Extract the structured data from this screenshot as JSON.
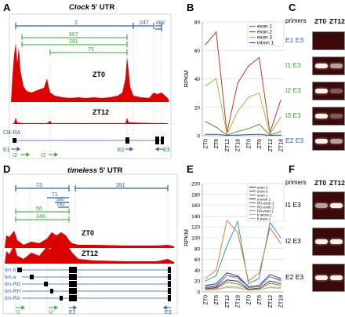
{
  "panels": {
    "A": {
      "label": "A",
      "title_gene": "Clock",
      "title_rest": " 5' UTR"
    },
    "B": {
      "label": "B"
    },
    "C": {
      "label": "C"
    },
    "D": {
      "label": "D",
      "title_gene": "timeless",
      "title_rest": "  5' UTR"
    },
    "E": {
      "label": "E"
    },
    "F": {
      "label": "F"
    }
  },
  "clock_track": {
    "blue_labels": [
      "1",
      "247",
      "889"
    ],
    "green_labels": [
      "667",
      "291",
      "75"
    ],
    "tracks": [
      "ZT0",
      "ZT12"
    ],
    "transcript": "Clk-RA",
    "primers_bottom": [
      "E1",
      "I2",
      "I3",
      "E2",
      "E3"
    ],
    "colors": {
      "coverage": "#dd0000",
      "blue": "#2e5fa8",
      "green": "#33aa33"
    }
  },
  "tim_track": {
    "blue_labels": [
      "73",
      "71",
      "587",
      "162",
      "391"
    ],
    "green_labels": [
      "66",
      "349"
    ],
    "tracks": [
      "ZT0",
      "ZT12"
    ],
    "transcripts": [
      "tim.b",
      "tim.a",
      "tim-RG",
      "tim-RH",
      "tim-RA"
    ],
    "primers_bottom": [
      "I1",
      "I2",
      "E2",
      "E3"
    ]
  },
  "chart_data": [
    {
      "type": "line",
      "panel": "B",
      "categories": [
        "ZT0",
        "ZT6",
        "ZT12",
        "ZT18",
        "ZT0",
        "ZT6",
        "ZT12",
        "ZT18"
      ],
      "ylabel": "RPKM",
      "ylim": [
        0,
        80
      ],
      "yticks": [
        0,
        20,
        40,
        60,
        80
      ],
      "grid": true,
      "legend": "top-right",
      "series": [
        {
          "name": "exon 1",
          "color": "#4e8f3a",
          "values": [
            10,
            6,
            0.5,
            3,
            5,
            8,
            0.5,
            3
          ]
        },
        {
          "name": "exon 2",
          "color": "#c0392b",
          "values": [
            64,
            73,
            2,
            37,
            49,
            55,
            2,
            25
          ]
        },
        {
          "name": "exon 3",
          "color": "#a8b83a",
          "values": [
            35,
            40,
            1,
            17,
            27,
            30,
            1,
            13
          ]
        },
        {
          "name": "intron 1",
          "color": "#2c5aa0",
          "values": [
            1,
            1,
            0.3,
            0.5,
            0.8,
            1,
            0.3,
            0.5
          ]
        }
      ]
    },
    {
      "type": "line",
      "panel": "E",
      "categories": [
        "ZT0",
        "ZT6",
        "ZT12",
        "ZT18",
        "ZT0",
        "ZT6",
        "ZT12",
        "ZT18"
      ],
      "ylabel": "RPKM",
      "ylim": [
        0,
        200
      ],
      "yticks": [
        0,
        20,
        40,
        60,
        80,
        100,
        120,
        140,
        160,
        180,
        200
      ],
      "grid": true,
      "legend": "top-right",
      "series": [
        {
          "name": "exon 2",
          "color": "#1f4e9c",
          "values": [
            12,
            15,
            35,
            30,
            10,
            12,
            32,
            25
          ]
        },
        {
          "name": "exon 3",
          "color": "#c0392b",
          "values": [
            8,
            10,
            30,
            28,
            8,
            10,
            28,
            22
          ]
        },
        {
          "name": "exon 1",
          "color": "#6a8f3a",
          "values": [
            5,
            6,
            18,
            15,
            4,
            5,
            16,
            12
          ]
        },
        {
          "name": "a exon 1",
          "color": "#5b2c8f",
          "values": [
            6,
            8,
            22,
            20,
            5,
            7,
            20,
            15
          ]
        },
        {
          "name": "RH exon 1",
          "color": "#2e9fb0",
          "values": [
            20,
            30,
            85,
            130,
            15,
            25,
            128,
            100
          ]
        },
        {
          "name": "RG exon 1",
          "color": "#d9822b",
          "values": [
            25,
            40,
            132,
            110,
            20,
            35,
            118,
            90
          ]
        },
        {
          "name": "RA exon 1",
          "color": "#7fa3d1",
          "values": [
            10,
            12,
            30,
            25,
            9,
            11,
            28,
            20
          ]
        },
        {
          "name": "b intron 1",
          "color": "#e8a0a0",
          "values": [
            3,
            4,
            8,
            7,
            3,
            4,
            8,
            6
          ]
        },
        {
          "name": "b exon 1",
          "color": "#b5c060",
          "values": [
            4,
            5,
            10,
            9,
            3,
            4,
            9,
            8
          ]
        }
      ]
    }
  ],
  "gel_C": {
    "headers": [
      "primers",
      "ZT0",
      "ZT12"
    ],
    "rows": [
      {
        "label": "E1  E3",
        "i_color": "#2e5fa8",
        "ZT0": "none",
        "ZT12": "none"
      },
      {
        "label": "I1  E3",
        "i_color": "#33aa33",
        "ZT0": "strong",
        "ZT12": "medium"
      },
      {
        "label": "I2  E3",
        "i_color": "#33aa33",
        "ZT0": "strong",
        "ZT12": "weak"
      },
      {
        "label": "I3  E3",
        "i_color": "#33aa33",
        "ZT0": "strong",
        "ZT12": "weak"
      },
      {
        "label": "E2  E3",
        "i_color": "#2e5fa8",
        "ZT0": "strong",
        "ZT12": "medium"
      }
    ]
  },
  "gel_F": {
    "headers": [
      "primers",
      "ZT0",
      "ZT12"
    ],
    "rows": [
      {
        "label": "I1   E3",
        "ZT0": "medium",
        "ZT12": "strong"
      },
      {
        "label": "I2   E3",
        "ZT0": "strong",
        "ZT12": "strong"
      },
      {
        "label": "E2   E3",
        "ZT0": "strong",
        "ZT12": "strong"
      }
    ]
  }
}
